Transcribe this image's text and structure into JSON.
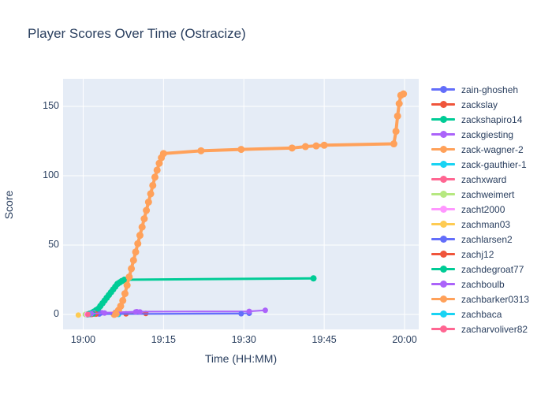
{
  "title": "Player Scores Over Time (Ostracize)",
  "colors": {
    "figure_background": "#ffffff",
    "plot_background": "#e5ecf6",
    "gridline": "#ffffff",
    "text": "#2a3f5f"
  },
  "chart_data": {
    "type": "line",
    "title": "Player Scores Over Time (Ostracize)",
    "xlabel": "Time (HH:MM)",
    "ylabel": "Score",
    "grid": true,
    "legend_position": "right",
    "x_ticks": [
      {
        "minutes": 0,
        "label": "19:00"
      },
      {
        "minutes": 15,
        "label": "19:15"
      },
      {
        "minutes": 30,
        "label": "19:30"
      },
      {
        "minutes": 45,
        "label": "19:45"
      },
      {
        "minutes": 60,
        "label": "20:00"
      }
    ],
    "y_ticks": [
      {
        "value": 0,
        "label": "0"
      },
      {
        "value": 50,
        "label": "50"
      },
      {
        "value": 100,
        "label": "100"
      },
      {
        "value": 150,
        "label": "150"
      }
    ],
    "xlim_minutes_after_1900": [
      -3.75,
      62.65
    ],
    "ylim": [
      -10.8,
      169.9
    ],
    "series": [
      {
        "name": "zain-ghosheh",
        "color": "#636efa",
        "points": [
          [
            0.8,
            0
          ],
          [
            1.5,
            0.2
          ],
          [
            31,
            0.8
          ]
        ]
      },
      {
        "name": "zackslay",
        "color": "#ef553b",
        "points": [
          [
            1.3,
            0
          ],
          [
            2,
            0.3
          ],
          [
            8,
            0.4
          ],
          [
            11.7,
            0.7
          ]
        ]
      },
      {
        "name": "zackshapiro14",
        "color": "#00cc96",
        "points": [
          [
            0.8,
            0
          ],
          [
            1.2,
            0.5
          ],
          [
            1.6,
            1
          ],
          [
            2,
            2
          ],
          [
            2.4,
            3
          ],
          [
            2.8,
            4
          ],
          [
            3.2,
            6
          ],
          [
            3.6,
            8
          ],
          [
            4,
            10
          ],
          [
            4.4,
            12
          ],
          [
            4.8,
            14
          ],
          [
            5.2,
            16
          ],
          [
            5.6,
            18
          ],
          [
            6,
            20
          ],
          [
            6.4,
            22
          ],
          [
            6.8,
            23
          ],
          [
            7.2,
            24
          ],
          [
            7.7,
            25
          ],
          [
            43,
            26
          ]
        ]
      },
      {
        "name": "zackgiesting",
        "color": "#ab63fa",
        "points": [
          [
            1,
            0
          ],
          [
            2,
            1
          ],
          [
            3.5,
            1.2
          ],
          [
            6,
            1.5
          ],
          [
            10,
            2
          ],
          [
            31,
            2.2
          ],
          [
            34,
            3
          ]
        ]
      },
      {
        "name": "zack-wagner-2",
        "color": "#ffa15a",
        "points": [
          [
            5.8,
            0
          ],
          [
            6.2,
            1
          ],
          [
            6.6,
            3
          ],
          [
            7,
            6
          ],
          [
            7.4,
            10
          ],
          [
            7.8,
            15
          ],
          [
            8.2,
            21
          ],
          [
            8.6,
            27
          ],
          [
            9,
            33
          ],
          [
            9.4,
            39
          ],
          [
            9.8,
            45
          ],
          [
            10.2,
            51
          ],
          [
            10.6,
            57
          ],
          [
            11,
            63
          ],
          [
            11.4,
            69
          ],
          [
            11.8,
            75
          ],
          [
            12.2,
            81
          ],
          [
            12.6,
            87
          ],
          [
            13,
            93
          ],
          [
            13.4,
            99
          ],
          [
            13.8,
            104
          ],
          [
            14.2,
            109
          ],
          [
            14.6,
            113
          ],
          [
            15,
            116
          ],
          [
            22,
            118
          ],
          [
            29.5,
            119
          ],
          [
            39,
            120
          ],
          [
            41.5,
            121
          ],
          [
            43.5,
            121.5
          ],
          [
            45,
            122
          ],
          [
            58,
            123
          ],
          [
            58.4,
            132
          ],
          [
            58.7,
            143
          ],
          [
            59,
            152
          ],
          [
            59.3,
            158
          ],
          [
            59.8,
            159
          ]
        ]
      },
      {
        "name": "zack-gauthier-1",
        "color": "#19d3f3",
        "points": [
          [
            6.6,
            0
          ]
        ]
      },
      {
        "name": "zachxward",
        "color": "#ff6692",
        "points": [
          [
            0.6,
            0
          ],
          [
            1.4,
            0.2
          ]
        ]
      },
      {
        "name": "zachweimert",
        "color": "#b6e880",
        "points": [
          [
            0.4,
            0
          ]
        ]
      },
      {
        "name": "zacht2000",
        "color": "#ff97ff",
        "points": [
          [
            0.7,
            0
          ]
        ]
      },
      {
        "name": "zachman03",
        "color": "#fecb52",
        "points": [
          [
            -0.9,
            -0.5
          ]
        ]
      },
      {
        "name": "zachlarsen2",
        "color": "#636efa",
        "points": [
          [
            1.2,
            0
          ],
          [
            3,
            0.3
          ],
          [
            29.5,
            0.5
          ]
        ]
      },
      {
        "name": "zachj12",
        "color": "#ef553b",
        "points": [
          [
            1.6,
            0
          ],
          [
            2.4,
            0.2
          ]
        ]
      },
      {
        "name": "zachdegroat77",
        "color": "#00cc96",
        "points": [
          [
            1.1,
            0
          ],
          [
            1.9,
            0.4
          ]
        ]
      },
      {
        "name": "zachboulb",
        "color": "#ab63fa",
        "points": [
          [
            1.5,
            0.5
          ],
          [
            4,
            1
          ],
          [
            9.8,
            1.8
          ],
          [
            10.6,
            1.8
          ]
        ]
      },
      {
        "name": "zachbarker0313",
        "color": "#ffa15a",
        "points": [
          [
            5.9,
            0
          ],
          [
            6.3,
            0.2
          ]
        ]
      },
      {
        "name": "zachbaca",
        "color": "#19d3f3",
        "points": [
          [
            1,
            0
          ]
        ]
      },
      {
        "name": "zacharyoliver82",
        "color": "#ff6692",
        "points": [
          [
            0.9,
            0
          ]
        ]
      }
    ]
  }
}
